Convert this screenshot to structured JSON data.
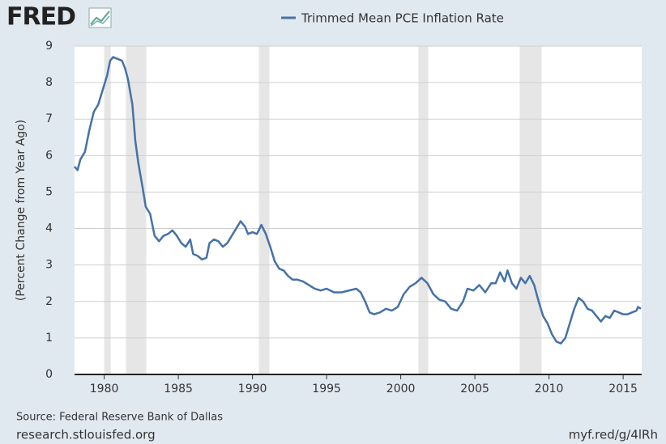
{
  "chart_data": {
    "type": "line",
    "logo": "FRED",
    "y_label": "(Percent Change from Year Ago)",
    "source": "Source: Federal Reserve Bank of Dallas",
    "footer_left": "research.stlouisfed.org",
    "footer_right": "myf.red/g/4lRh",
    "x": [
      1978.0,
      1978.2,
      1978.4,
      1978.7,
      1979.0,
      1979.3,
      1979.6,
      1979.9,
      1980.2,
      1980.4,
      1980.6,
      1980.9,
      1981.2,
      1981.4,
      1981.6,
      1981.9,
      1982.1,
      1982.3,
      1982.6,
      1982.8,
      1983.1,
      1983.4,
      1983.7,
      1984.0,
      1984.3,
      1984.6,
      1984.9,
      1985.2,
      1985.5,
      1985.8,
      1986.0,
      1986.3,
      1986.6,
      1986.9,
      1987.1,
      1987.4,
      1987.7,
      1988.0,
      1988.3,
      1988.6,
      1988.9,
      1989.2,
      1989.5,
      1989.7,
      1990.0,
      1990.3,
      1990.6,
      1990.9,
      1991.2,
      1991.5,
      1991.8,
      1992.1,
      1992.4,
      1992.7,
      1993.0,
      1993.4,
      1993.8,
      1994.2,
      1994.6,
      1995.0,
      1995.5,
      1996.0,
      1996.5,
      1997.0,
      1997.3,
      1997.6,
      1997.9,
      1998.2,
      1998.6,
      1999.0,
      1999.4,
      1999.8,
      2000.2,
      2000.6,
      2001.0,
      2001.4,
      2001.8,
      2002.2,
      2002.6,
      2003.0,
      2003.4,
      2003.8,
      2004.2,
      2004.5,
      2004.9,
      2005.3,
      2005.7,
      2006.1,
      2006.4,
      2006.7,
      2007.0,
      2007.2,
      2007.5,
      2007.8,
      2008.1,
      2008.4,
      2008.7,
      2009.0,
      2009.3,
      2009.6,
      2009.9,
      2010.2,
      2010.5,
      2010.8,
      2011.1,
      2011.4,
      2011.7,
      2012.0,
      2012.3,
      2012.6,
      2012.9,
      2013.2,
      2013.5,
      2013.8,
      2014.1,
      2014.4,
      2014.7,
      2015.0,
      2015.3,
      2015.6,
      2015.9,
      2016.0,
      2016.2
    ],
    "series": [
      {
        "name": "Trimmed Mean PCE Inflation Rate",
        "color": "#4572a7",
        "values": [
          5.7,
          5.6,
          5.9,
          6.1,
          6.7,
          7.2,
          7.4,
          7.8,
          8.2,
          8.6,
          8.7,
          8.65,
          8.6,
          8.4,
          8.1,
          7.4,
          6.4,
          5.8,
          5.1,
          4.6,
          4.4,
          3.8,
          3.65,
          3.8,
          3.85,
          3.95,
          3.8,
          3.6,
          3.5,
          3.7,
          3.3,
          3.25,
          3.15,
          3.2,
          3.6,
          3.7,
          3.65,
          3.5,
          3.6,
          3.8,
          4.0,
          4.2,
          4.05,
          3.85,
          3.9,
          3.85,
          4.1,
          3.85,
          3.5,
          3.1,
          2.9,
          2.85,
          2.7,
          2.6,
          2.6,
          2.55,
          2.45,
          2.35,
          2.3,
          2.35,
          2.25,
          2.25,
          2.3,
          2.35,
          2.25,
          2.0,
          1.7,
          1.65,
          1.7,
          1.8,
          1.75,
          1.85,
          2.2,
          2.4,
          2.5,
          2.65,
          2.5,
          2.2,
          2.05,
          2.0,
          1.8,
          1.75,
          2.0,
          2.35,
          2.3,
          2.45,
          2.25,
          2.5,
          2.5,
          2.8,
          2.55,
          2.85,
          2.5,
          2.35,
          2.65,
          2.5,
          2.7,
          2.45,
          2.0,
          1.6,
          1.4,
          1.1,
          0.9,
          0.85,
          1.0,
          1.4,
          1.8,
          2.1,
          2.0,
          1.8,
          1.75,
          1.6,
          1.45,
          1.6,
          1.55,
          1.75,
          1.7,
          1.65,
          1.65,
          1.7,
          1.75,
          1.85,
          1.8
        ]
      }
    ],
    "recessions": [
      [
        1980.0,
        1980.44
      ],
      [
        1981.47,
        1982.84
      ],
      [
        1990.43,
        1991.14
      ],
      [
        2001.19,
        2001.85
      ],
      [
        2008.02,
        2009.5
      ]
    ],
    "recession_color": "#e6e6e6",
    "xlim": [
      1978.0,
      2016.25
    ],
    "xticks": [
      1980,
      1985,
      1990,
      1995,
      2000,
      2005,
      2010,
      2015
    ],
    "ylim": [
      0,
      9
    ],
    "yticks": [
      0,
      1,
      2,
      3,
      4,
      5,
      6,
      7,
      8,
      9
    ],
    "grid": true
  }
}
